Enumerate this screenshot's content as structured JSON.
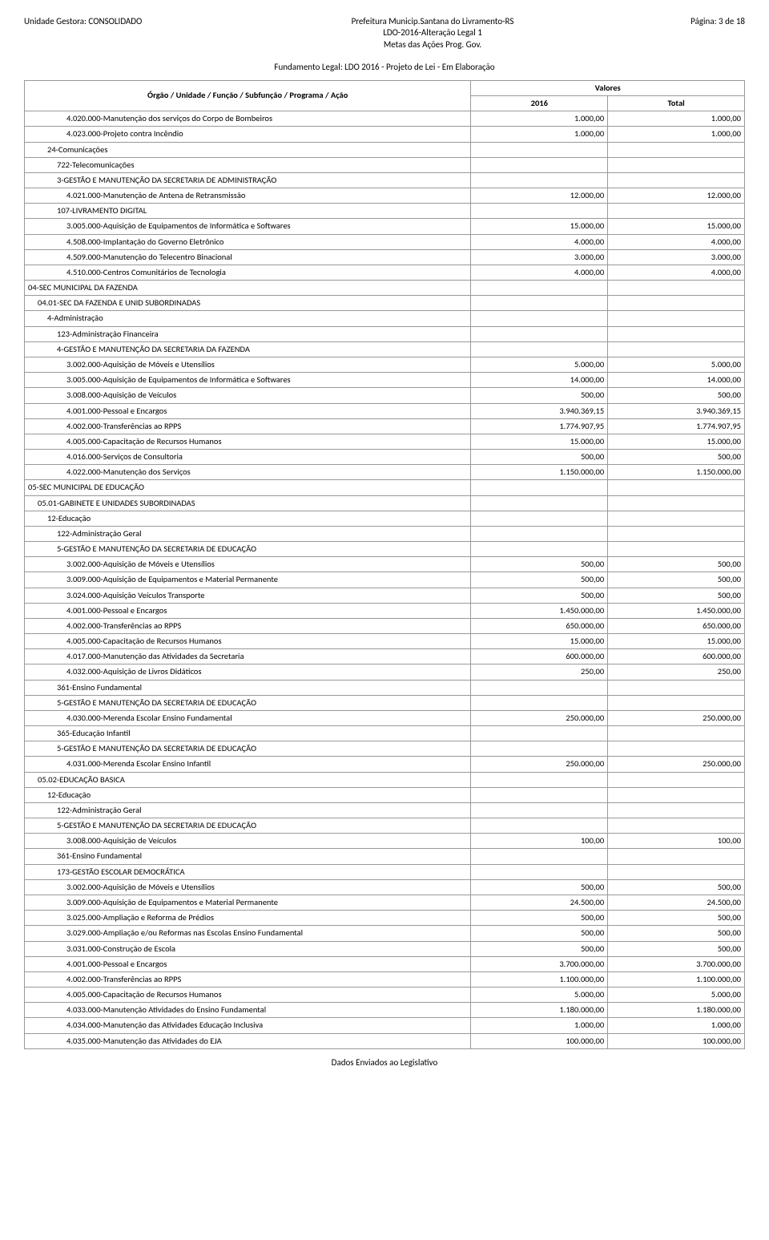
{
  "header": {
    "left": "Unidade Gestora: CONSOLIDADO",
    "center_line1": "Prefeitura Municip.Santana do Livramento-RS",
    "center_line2": "LDO-2016-Alteração Legal 1",
    "center_line3": "Metas das Ações Prog. Gov.",
    "right": "Página: 3 de 18"
  },
  "section_title": "Fundamento Legal: LDO 2016 - Projeto de Lei - Em Elaboração",
  "table_header": {
    "col1": "Órgão / Unidade / Função / Subfunção / Programa / Ação",
    "valores": "Valores",
    "y2016": "2016",
    "total": "Total"
  },
  "footer": "Dados Enviados ao Legislativo",
  "rows": [
    {
      "indent": 4,
      "label": "4.020.000-Manutenção dos serviços do Corpo de Bombeiros",
      "v2016": "1.000,00",
      "total": "1.000,00"
    },
    {
      "indent": 4,
      "label": "4.023.000-Projeto contra Incêndio",
      "v2016": "1.000,00",
      "total": "1.000,00"
    },
    {
      "indent": 2,
      "label": "24-Comunicações",
      "v2016": "",
      "total": ""
    },
    {
      "indent": 3,
      "label": "722-Telecomunicações",
      "v2016": "",
      "total": ""
    },
    {
      "indent": 3,
      "label": "3-GESTÃO E MANUTENÇÃO DA SECRETARIA DE ADMINISTRAÇÃO",
      "v2016": "",
      "total": ""
    },
    {
      "indent": 4,
      "label": "4.021.000-Manutenção de Antena de Retransmissão",
      "v2016": "12.000,00",
      "total": "12.000,00"
    },
    {
      "indent": 3,
      "label": "107-LIVRAMENTO DIGITAL",
      "v2016": "",
      "total": ""
    },
    {
      "indent": 4,
      "label": "3.005.000-Aquisição de Equipamentos de Informática e Softwares",
      "v2016": "15.000,00",
      "total": "15.000,00"
    },
    {
      "indent": 4,
      "label": "4.508.000-Implantação do Governo Eletrônico",
      "v2016": "4.000,00",
      "total": "4.000,00"
    },
    {
      "indent": 4,
      "label": "4.509.000-Manutenção do Telecentro Binacional",
      "v2016": "3.000,00",
      "total": "3.000,00"
    },
    {
      "indent": 4,
      "label": "4.510.000-Centros Comunitários de Tecnologia",
      "v2016": "4.000,00",
      "total": "4.000,00"
    },
    {
      "indent": 0,
      "label": "04-SEC MUNICIPAL DA FAZENDA",
      "v2016": "",
      "total": ""
    },
    {
      "indent": 1,
      "label": "04.01-SEC DA FAZENDA E UNID SUBORDINADAS",
      "v2016": "",
      "total": ""
    },
    {
      "indent": 2,
      "label": "4-Administração",
      "v2016": "",
      "total": ""
    },
    {
      "indent": 3,
      "label": "123-Administração Financeira",
      "v2016": "",
      "total": ""
    },
    {
      "indent": 3,
      "label": "4-GESTÃO E MANUTENÇÃO DA SECRETARIA DA FAZENDA",
      "v2016": "",
      "total": ""
    },
    {
      "indent": 4,
      "label": "3.002.000-Aquisição de Móveis e Utensílios",
      "v2016": "5.000,00",
      "total": "5.000,00"
    },
    {
      "indent": 4,
      "label": "3.005.000-Aquisição de Equipamentos de Informática e Softwares",
      "v2016": "14.000,00",
      "total": "14.000,00"
    },
    {
      "indent": 4,
      "label": "3.008.000-Aquisição de Veículos",
      "v2016": "500,00",
      "total": "500,00"
    },
    {
      "indent": 4,
      "label": "4.001.000-Pessoal e Encargos",
      "v2016": "3.940.369,15",
      "total": "3.940.369,15"
    },
    {
      "indent": 4,
      "label": "4.002.000-Transferências ao RPPS",
      "v2016": "1.774.907,95",
      "total": "1.774.907,95"
    },
    {
      "indent": 4,
      "label": "4.005.000-Capacitação de Recursos Humanos",
      "v2016": "15.000,00",
      "total": "15.000,00"
    },
    {
      "indent": 4,
      "label": "4.016.000-Serviços de Consultoria",
      "v2016": "500,00",
      "total": "500,00"
    },
    {
      "indent": 4,
      "label": "4.022.000-Manutenção dos Serviços",
      "v2016": "1.150.000,00",
      "total": "1.150.000,00"
    },
    {
      "indent": 0,
      "label": "05-SEC MUNICIPAL DE EDUCAÇÃO",
      "v2016": "",
      "total": ""
    },
    {
      "indent": 1,
      "label": "05.01-GABINETE E UNIDADES SUBORDINADAS",
      "v2016": "",
      "total": ""
    },
    {
      "indent": 2,
      "label": "12-Educação",
      "v2016": "",
      "total": ""
    },
    {
      "indent": 3,
      "label": "122-Administração Geral",
      "v2016": "",
      "total": ""
    },
    {
      "indent": 3,
      "label": "5-GESTÃO E MANUTENÇÃO DA SECRETARIA DE EDUCAÇÃO",
      "v2016": "",
      "total": ""
    },
    {
      "indent": 4,
      "label": "3.002.000-Aquisição de Móveis e Utensílios",
      "v2016": "500,00",
      "total": "500,00"
    },
    {
      "indent": 4,
      "label": "3.009.000-Aquisição de Equipamentos e Material Permanente",
      "v2016": "500,00",
      "total": "500,00"
    },
    {
      "indent": 4,
      "label": "3.024.000-Aquisição Veículos Transporte",
      "v2016": "500,00",
      "total": "500,00"
    },
    {
      "indent": 4,
      "label": "4.001.000-Pessoal e Encargos",
      "v2016": "1.450.000,00",
      "total": "1.450.000,00"
    },
    {
      "indent": 4,
      "label": "4.002.000-Transferências ao RPPS",
      "v2016": "650.000,00",
      "total": "650.000,00"
    },
    {
      "indent": 4,
      "label": "4.005.000-Capacitação de Recursos Humanos",
      "v2016": "15.000,00",
      "total": "15.000,00"
    },
    {
      "indent": 4,
      "label": "4.017.000-Manutenção das Atividades da Secretaria",
      "v2016": "600.000,00",
      "total": "600.000,00"
    },
    {
      "indent": 4,
      "label": "4.032.000-Aquisição de Livros Didáticos",
      "v2016": "250,00",
      "total": "250,00"
    },
    {
      "indent": 3,
      "label": "361-Ensino Fundamental",
      "v2016": "",
      "total": ""
    },
    {
      "indent": 3,
      "label": "5-GESTÃO E MANUTENÇÃO DA SECRETARIA DE EDUCAÇÃO",
      "v2016": "",
      "total": ""
    },
    {
      "indent": 4,
      "label": "4.030.000-Merenda Escolar Ensino Fundamental",
      "v2016": "250.000,00",
      "total": "250.000,00"
    },
    {
      "indent": 3,
      "label": "365-Educação Infantil",
      "v2016": "",
      "total": ""
    },
    {
      "indent": 3,
      "label": "5-GESTÃO E MANUTENÇÃO DA SECRETARIA DE EDUCAÇÃO",
      "v2016": "",
      "total": ""
    },
    {
      "indent": 4,
      "label": "4.031.000-Merenda Escolar Ensino Infantil",
      "v2016": "250.000,00",
      "total": "250.000,00"
    },
    {
      "indent": 1,
      "label": "05.02-EDUCAÇÃO BASICA",
      "v2016": "",
      "total": ""
    },
    {
      "indent": 2,
      "label": "12-Educação",
      "v2016": "",
      "total": ""
    },
    {
      "indent": 3,
      "label": "122-Administração Geral",
      "v2016": "",
      "total": ""
    },
    {
      "indent": 3,
      "label": "5-GESTÃO E MANUTENÇÃO DA SECRETARIA DE EDUCAÇÃO",
      "v2016": "",
      "total": ""
    },
    {
      "indent": 4,
      "label": "3.008.000-Aquisição de Veículos",
      "v2016": "100,00",
      "total": "100,00"
    },
    {
      "indent": 3,
      "label": "361-Ensino Fundamental",
      "v2016": "",
      "total": ""
    },
    {
      "indent": 3,
      "label": "173-GESTÃO ESCOLAR DEMOCRÁTICA",
      "v2016": "",
      "total": ""
    },
    {
      "indent": 4,
      "label": "3.002.000-Aquisição de Móveis e Utensílios",
      "v2016": "500,00",
      "total": "500,00"
    },
    {
      "indent": 4,
      "label": "3.009.000-Aquisição de Equipamentos e Material Permanente",
      "v2016": "24.500,00",
      "total": "24.500,00"
    },
    {
      "indent": 4,
      "label": "3.025.000-Ampliação e Reforma de Prédios",
      "v2016": "500,00",
      "total": "500,00"
    },
    {
      "indent": 4,
      "label": "3.029.000-Ampliação e/ou Reformas nas Escolas Ensino Fundamental",
      "v2016": "500,00",
      "total": "500,00"
    },
    {
      "indent": 4,
      "label": "3.031.000-Construção de Escola",
      "v2016": "500,00",
      "total": "500,00"
    },
    {
      "indent": 4,
      "label": "4.001.000-Pessoal e Encargos",
      "v2016": "3.700.000,00",
      "total": "3.700.000,00"
    },
    {
      "indent": 4,
      "label": "4.002.000-Transferências ao RPPS",
      "v2016": "1.100.000,00",
      "total": "1.100.000,00"
    },
    {
      "indent": 4,
      "label": "4.005.000-Capacitação de Recursos Humanos",
      "v2016": "5.000,00",
      "total": "5.000,00"
    },
    {
      "indent": 4,
      "label": "4.033.000-Manutenção Atividades do Ensino Fundamental",
      "v2016": "1.180.000,00",
      "total": "1.180.000,00"
    },
    {
      "indent": 4,
      "label": "4.034.000-Manutenção das Atividades Educação Inclusiva",
      "v2016": "1.000,00",
      "total": "1.000,00"
    },
    {
      "indent": 4,
      "label": "4.035.000-Manutenção das Atividades do EJA",
      "v2016": "100.000,00",
      "total": "100.000,00"
    }
  ]
}
